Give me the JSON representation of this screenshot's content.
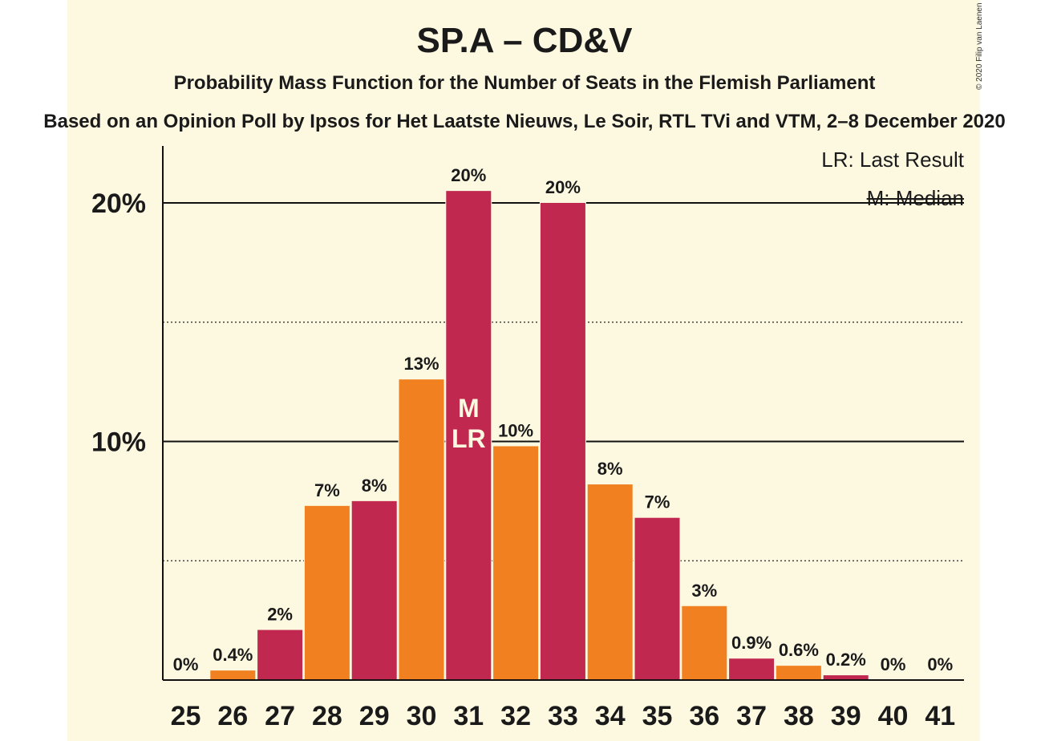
{
  "chart_data": {
    "type": "bar",
    "title": "SP.A – CD&V",
    "subtitle": "Probability Mass Function for the Number of Seats in the Flemish Parliament",
    "subtitle2": "Based on an Opinion Poll by Ipsos for Het Laatste Nieuws, Le Soir, RTL TVi and VTM, 2–8 December 2020",
    "copyright": "© 2020 Filip van Laenen",
    "legend": {
      "last_result": "LR: Last Result",
      "median": "M: Median",
      "placement": "top-right"
    },
    "categories": [
      "25",
      "26",
      "27",
      "28",
      "29",
      "30",
      "31",
      "32",
      "33",
      "34",
      "35",
      "36",
      "37",
      "38",
      "39",
      "40",
      "41"
    ],
    "values": [
      0,
      0.4,
      2.1,
      7.3,
      7.5,
      12.6,
      20.5,
      9.8,
      20.0,
      8.2,
      6.8,
      3.1,
      0.9,
      0.6,
      0.2,
      0,
      0
    ],
    "data_labels": [
      "0%",
      "0.4%",
      "2%",
      "7%",
      "8%",
      "13%",
      "20%",
      "10%",
      "20%",
      "8%",
      "7%",
      "3%",
      "0.9%",
      "0.6%",
      "0.2%",
      "0%",
      "0%"
    ],
    "bar_colors": [
      "#c0284f",
      "#f08020"
    ],
    "median_category": "31",
    "last_result_category": "31",
    "median_marker": "M",
    "last_result_marker": "LR",
    "y_ticks": [
      {
        "value": 10,
        "label": "10%"
      },
      {
        "value": 20,
        "label": "20%"
      }
    ],
    "dotted_gridlines": [
      5,
      15
    ],
    "ylim": [
      0,
      22.4
    ],
    "xlabel": "",
    "ylabel": ""
  }
}
